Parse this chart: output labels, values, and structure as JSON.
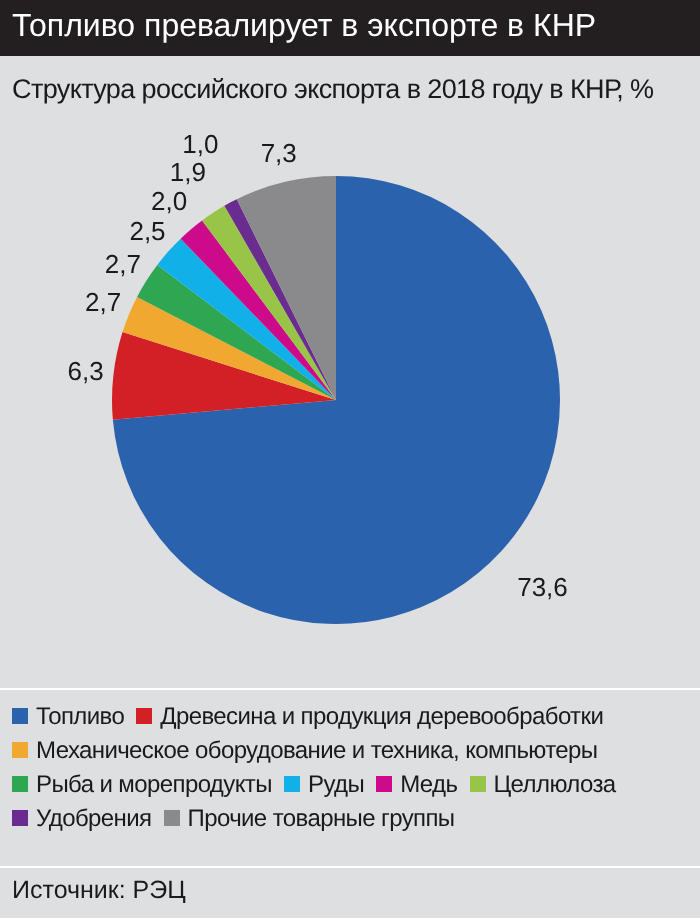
{
  "chart_data": {
    "type": "pie",
    "title": "Топливо превалирует в экспорте в КНР",
    "subtitle": "Структура российского экспорта в 2018 году в КНР, %",
    "categories": [
      "Топливо",
      "Древесина и продукция деревообработки",
      "Механическое оборудование и техника, компьютеры",
      "Рыба и морепродукты",
      "Руды",
      "Медь",
      "Целлюлоза",
      "Удобрения",
      "Прочие товарные группы"
    ],
    "values": [
      73.6,
      6.3,
      2.7,
      2.7,
      2.5,
      2.0,
      1.9,
      1.0,
      7.3
    ],
    "value_labels": [
      "73,6",
      "6,3",
      "2,7",
      "2,7",
      "2,5",
      "2,0",
      "1,9",
      "1,0",
      "7,3"
    ],
    "colors": [
      "#2a62ad",
      "#d32027",
      "#f0a830",
      "#2fa652",
      "#12b0e8",
      "#cc0a8a",
      "#98c548",
      "#6a2c8e",
      "#8a8a8c"
    ],
    "legend": "bottom",
    "annotations": [
      "Источник: РЭЦ"
    ]
  }
}
